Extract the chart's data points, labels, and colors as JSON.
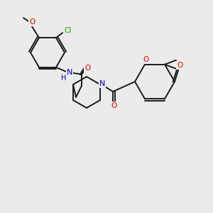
{
  "bg_color": "#ebebeb",
  "bond_color": "#1a1a1a",
  "atom_colors": {
    "O": "#dd0000",
    "N": "#0000bb",
    "Cl": "#00aa00",
    "C": "#1a1a1a"
  },
  "lw": 1.4,
  "fontsize": 7.5
}
